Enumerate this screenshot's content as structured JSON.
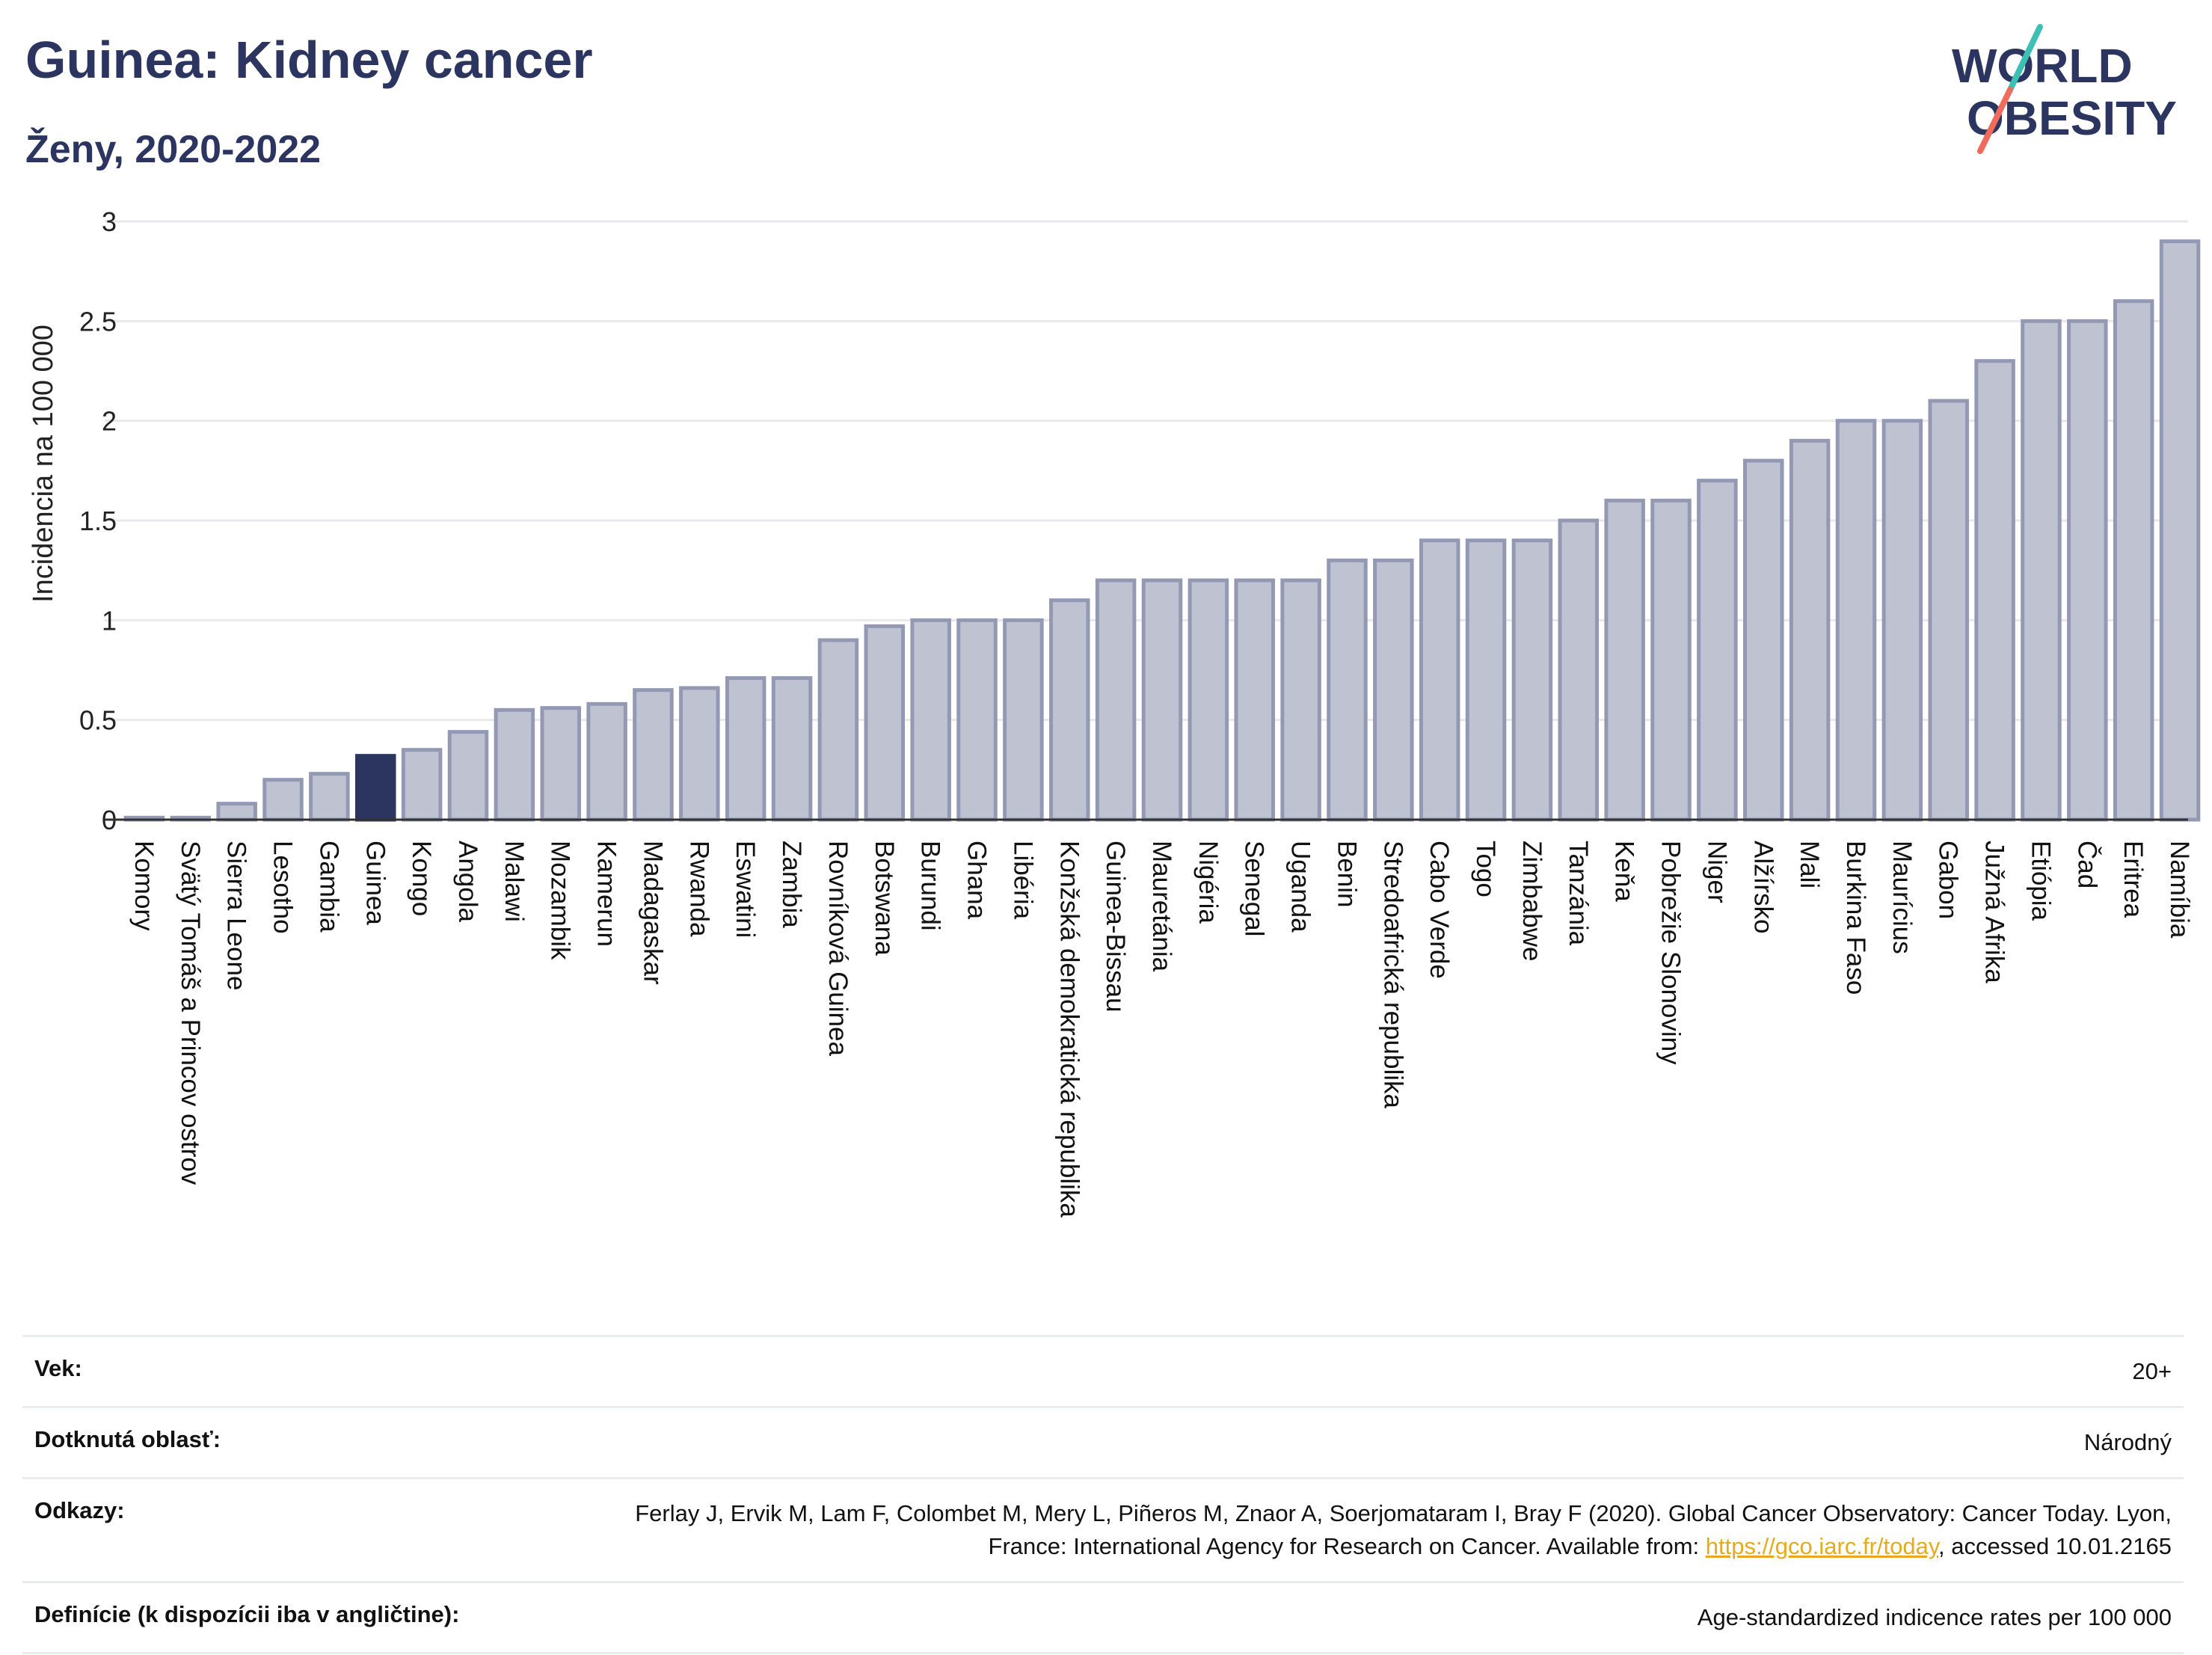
{
  "header": {
    "title": "Guinea: Kidney cancer",
    "subtitle": "Ženy, 2020-2022"
  },
  "logo": {
    "line1": "WORLD",
    "line2": "OBESITY",
    "colors": {
      "text": "#2b3560",
      "slash_teal": "#3dbfb3",
      "slash_coral": "#ee6b5e"
    }
  },
  "colors": {
    "bar_fill": "#bfc3d1",
    "bar_stroke": "#9499b3",
    "highlight_fill": "#2b3560",
    "title": "#2b3560",
    "grid": "#e8e8ec",
    "link": "#e6ab1c"
  },
  "chart_data": {
    "type": "bar",
    "ylabel": "Incidencia na 100 000",
    "ylim": [
      0,
      3
    ],
    "yticks": [
      0,
      0.5,
      1,
      1.5,
      2,
      2.5,
      3
    ],
    "ytick_labels": [
      "0",
      "0.5",
      "1",
      "1.5",
      "2",
      "2.5",
      "3"
    ],
    "grid": true,
    "highlight": "Guinea",
    "categories": [
      "Komory",
      "Svätý Tomáš a Princov ostrov",
      "Sierra Leone",
      "Lesotho",
      "Gambia",
      "Guinea",
      "Kongo",
      "Angola",
      "Malawi",
      "Mozambik",
      "Kamerun",
      "Madagaskar",
      "Rwanda",
      "Eswatini",
      "Zambia",
      "Rovníková Guinea",
      "Botswana",
      "Burundi",
      "Ghana",
      "Libéria",
      "Konžská demokratická republika",
      "Guinea-Bissau",
      "Mauretánia",
      "Nigéria",
      "Senegal",
      "Uganda",
      "Benin",
      "Stredoafrická republika",
      "Cabo Verde",
      "Togo",
      "Zimbabwe",
      "Tanzánia",
      "Keňa",
      "Pobrežie Slonoviny",
      "Niger",
      "Alžírsko",
      "Mali",
      "Burkina Faso",
      "Maurícius",
      "Gabon",
      "Južná Afrika",
      "Etiópia",
      "Čad",
      "Eritrea",
      "Namíbia"
    ],
    "values": [
      0.01,
      0.01,
      0.08,
      0.2,
      0.23,
      0.32,
      0.35,
      0.44,
      0.55,
      0.56,
      0.58,
      0.65,
      0.66,
      0.71,
      0.71,
      0.9,
      0.97,
      1.0,
      1.0,
      1.0,
      1.1,
      1.2,
      1.2,
      1.2,
      1.2,
      1.2,
      1.3,
      1.3,
      1.4,
      1.4,
      1.4,
      1.5,
      1.6,
      1.6,
      1.7,
      1.8,
      1.9,
      2.0,
      2.0,
      2.1,
      2.3,
      2.5,
      2.5,
      2.6,
      2.9
    ]
  },
  "meta": {
    "age": {
      "label": "Vek:",
      "value": "20+"
    },
    "area": {
      "label": "Dotknutá oblasť:",
      "value": "Národný"
    },
    "refs": {
      "label": "Odkazy:",
      "text_before": "Ferlay J, Ervik M, Lam F, Colombet M, Mery L, Piñeros M, Znaor A, Soerjomataram I, Bray F (2020). Global Cancer Observatory: Cancer Today. Lyon, France: International Agency for Research on Cancer. Available from: ",
      "link": "https://gco.iarc.fr/today",
      "text_after": ", accessed 10.01.2165"
    },
    "definitions": {
      "label": "Definície (k dispozícii iba v angličtine):",
      "value": "Age-standardized indicence rates per 100 000"
    }
  }
}
